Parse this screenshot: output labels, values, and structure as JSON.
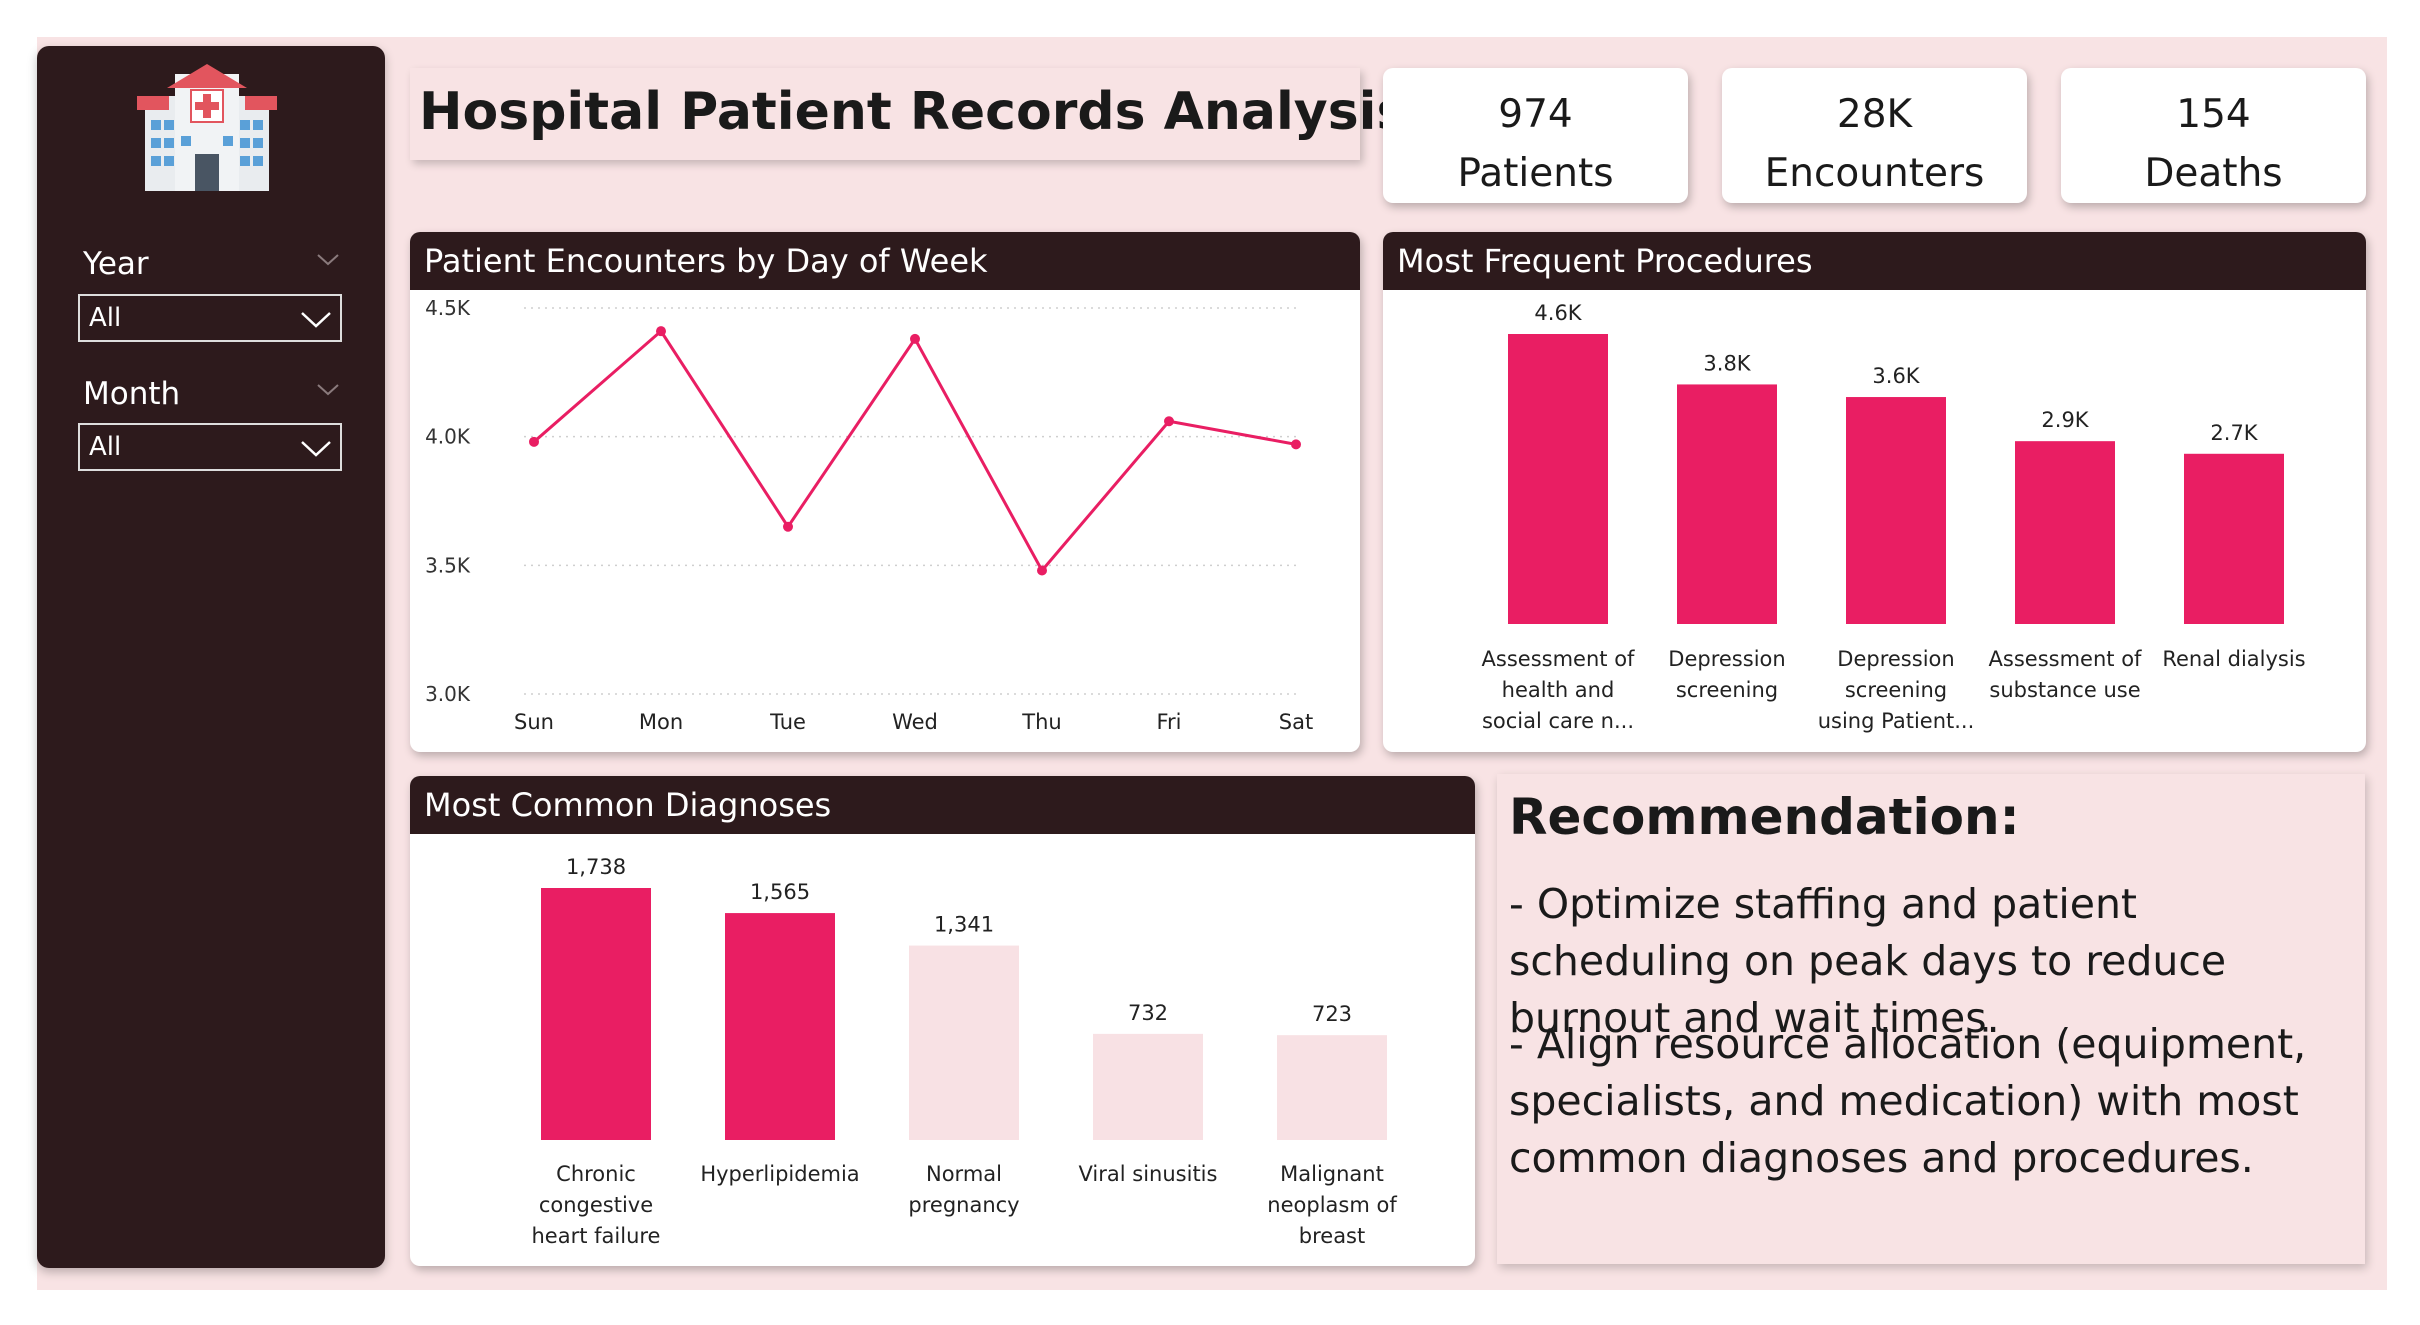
{
  "colors": {
    "accent": "#e91e63",
    "muted": "#f8e1e4",
    "dark": "#2d1a1c",
    "background": "#f8e3e4"
  },
  "sidebar": {
    "logo_icon": "hospital-icon",
    "filters": [
      {
        "label": "Year",
        "value": "All"
      },
      {
        "label": "Month",
        "value": "All"
      }
    ]
  },
  "title": "Hospital Patient Records Analysis",
  "kpis": [
    {
      "value": "974",
      "label": "Patients"
    },
    {
      "value": "28K",
      "label": "Encounters"
    },
    {
      "value": "154",
      "label": "Deaths"
    }
  ],
  "charts": {
    "encounters": {
      "title": "Patient Encounters by Day of Week",
      "type": "line",
      "categories": [
        "Sun",
        "Mon",
        "Tue",
        "Wed",
        "Thu",
        "Fri",
        "Sat"
      ],
      "values": [
        3980,
        4410,
        3650,
        4380,
        3480,
        4060,
        3970
      ],
      "ylim": [
        3000,
        4500
      ],
      "yticks": [
        4500,
        4000,
        3500,
        3000
      ],
      "ytick_labels": [
        "4.5K",
        "4.0K",
        "3.5K",
        "3.0K"
      ],
      "grid": true
    },
    "procedures": {
      "title": "Most Frequent Procedures",
      "type": "bar",
      "categories": [
        [
          "Assessment of",
          "health and",
          "social care n..."
        ],
        [
          "Depression",
          "screening"
        ],
        [
          "Depression",
          "screening",
          "using Patient..."
        ],
        [
          "Assessment of",
          "substance use"
        ],
        [
          "Renal dialysis"
        ]
      ],
      "values": [
        4600,
        3800,
        3600,
        2900,
        2700
      ],
      "data_labels": [
        "4.6K",
        "3.8K",
        "3.6K",
        "2.9K",
        "2.7K"
      ],
      "ylim": [
        0,
        4600
      ]
    },
    "diagnoses": {
      "title": "Most Common Diagnoses",
      "type": "bar",
      "categories": [
        [
          "Chronic",
          "congestive",
          "heart failure"
        ],
        [
          "Hyperlipidemia"
        ],
        [
          "Normal",
          "pregnancy"
        ],
        [
          "Viral sinusitis"
        ],
        [
          "Malignant",
          "neoplasm of",
          "breast"
        ]
      ],
      "values": [
        1738,
        1565,
        1341,
        732,
        723
      ],
      "data_labels": [
        "1,738",
        "1,565",
        "1,341",
        "732",
        "723"
      ],
      "highlighted": [
        true,
        true,
        false,
        false,
        false
      ],
      "ylim": [
        0,
        1738
      ]
    }
  },
  "recommendation": {
    "heading": "Recommendation:",
    "points": [
      "- Optimize staffing and patient scheduling on peak days to reduce burnout and wait times.",
      "- Align resource allocation (equipment, specialists, and medication) with most common diagnoses and procedures."
    ]
  }
}
